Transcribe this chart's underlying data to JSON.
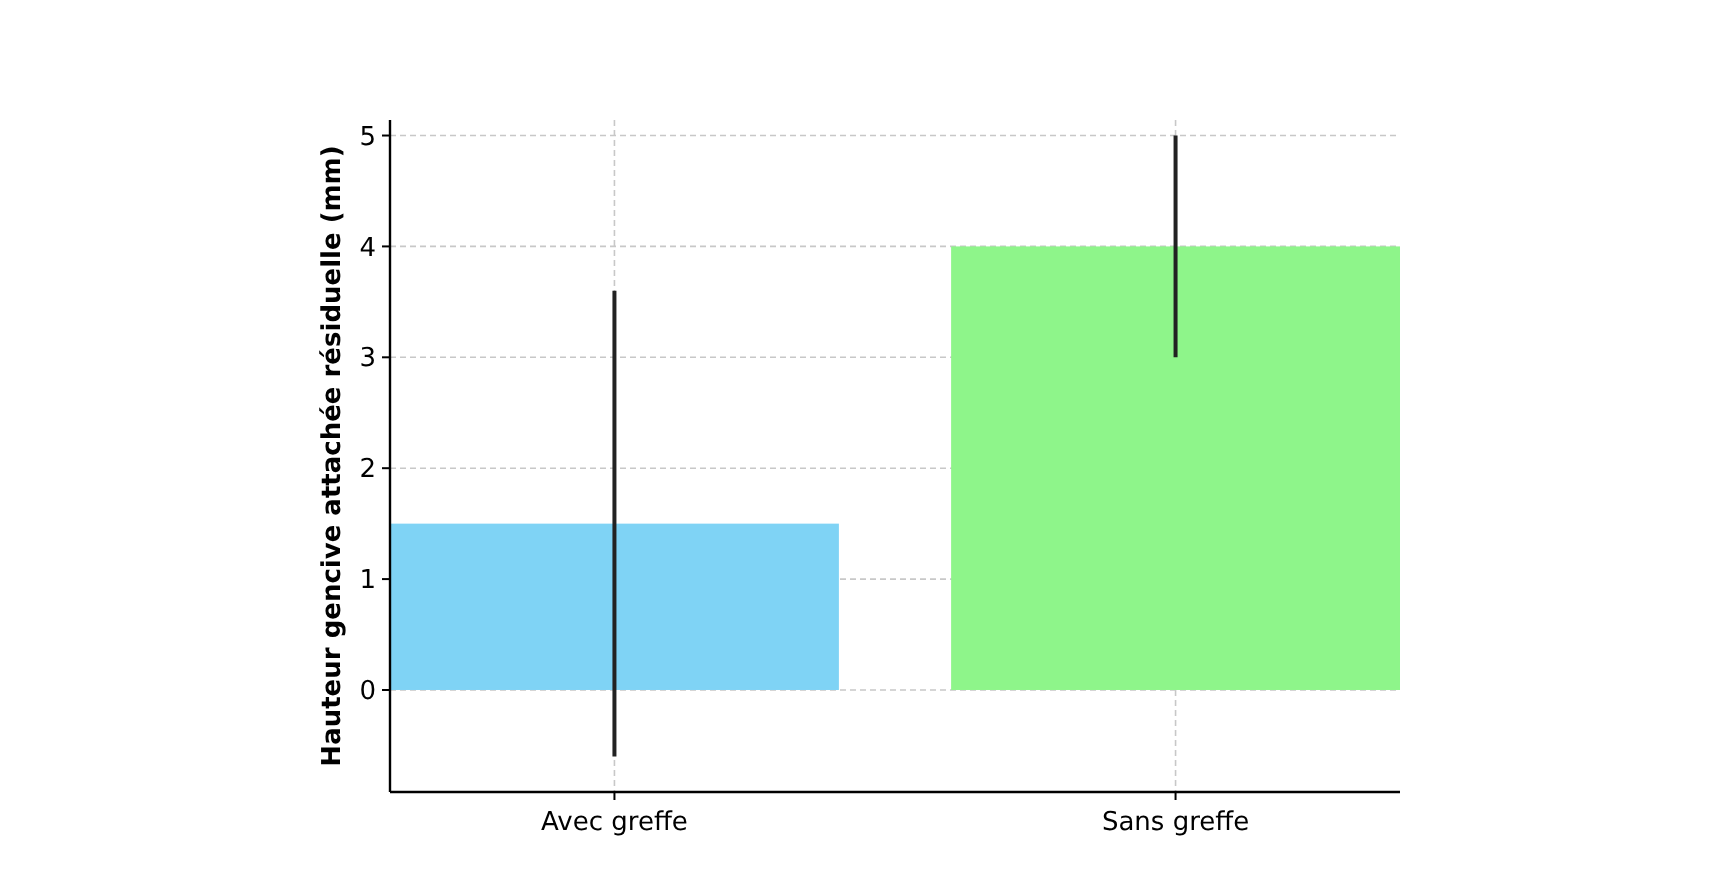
{
  "chart_data": {
    "type": "bar",
    "ylabel": "Hauteur gencive attachée résiduelle (mm)",
    "categories": [
      "Avec greffe",
      "Sans greffe"
    ],
    "values": [
      1.5,
      4
    ],
    "colors": [
      "#7fd3f5",
      "#8ef58a"
    ],
    "errors": [
      2.1,
      1
    ],
    "ylim": [
      -0.92,
      5.14
    ],
    "yticks": [
      0,
      1,
      2,
      3,
      4,
      5
    ],
    "grid": true
  }
}
